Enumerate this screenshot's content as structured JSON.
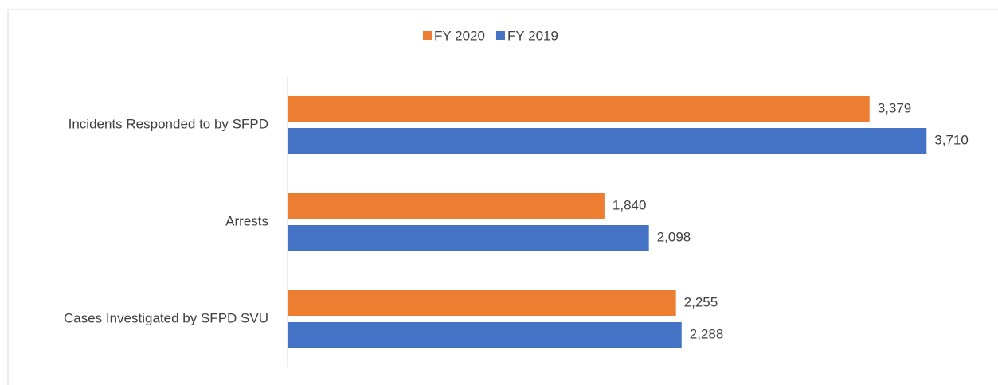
{
  "chart_data": {
    "type": "barh",
    "categories": [
      "Incidents Responded to by SFPD",
      "Arrests",
      "Cases Investigated by SFPD SVU"
    ],
    "series": [
      {
        "name": "FY 2020",
        "color": "#ed7d31",
        "values": [
          3379,
          1840,
          2255
        ],
        "value_labels": [
          "3,379",
          "1,840",
          "2,255"
        ]
      },
      {
        "name": "FY 2019",
        "color": "#4472c4",
        "values": [
          3710,
          2098,
          2288
        ],
        "value_labels": [
          "3,710",
          "2,098",
          "2,288"
        ]
      }
    ],
    "xlim": [
      0,
      4000
    ],
    "legend": "top"
  }
}
